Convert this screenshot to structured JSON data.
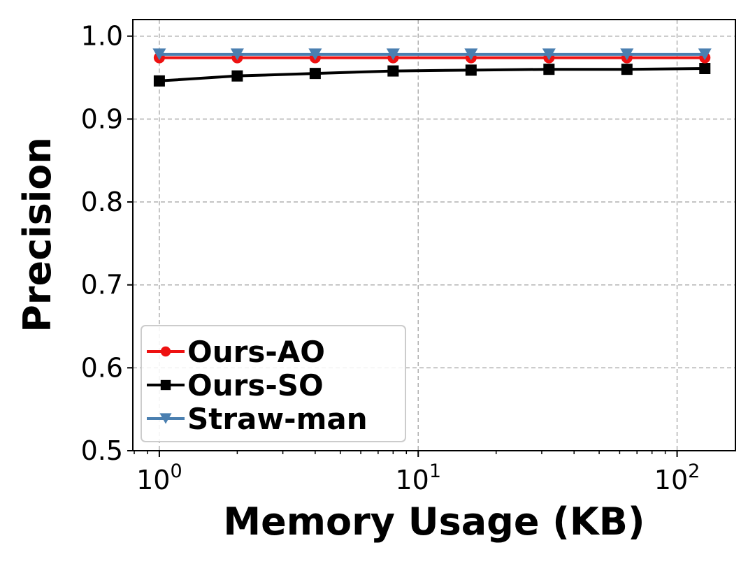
{
  "chart_data": {
    "type": "line",
    "xscale": "log",
    "xlabel": "Memory Usage (KB)",
    "ylabel": "Precision",
    "xlim": [
      0.79,
      168
    ],
    "ylim": [
      0.5,
      1.02
    ],
    "x": [
      1,
      2,
      4,
      8,
      16,
      32,
      64,
      128
    ],
    "x_ticks": [
      {
        "base": "10",
        "exp": "0",
        "value": 1
      },
      {
        "base": "10",
        "exp": "1",
        "value": 10
      },
      {
        "base": "10",
        "exp": "2",
        "value": 100
      }
    ],
    "y_ticks": [
      "0.5",
      "0.6",
      "0.7",
      "0.8",
      "0.9",
      "1.0"
    ],
    "grid": true,
    "legend_position": "bottom-left",
    "series": [
      {
        "name": "Ours-AO",
        "color": "#ee1111",
        "marker": "circle",
        "values": [
          0.974,
          0.974,
          0.974,
          0.974,
          0.974,
          0.974,
          0.974,
          0.974
        ]
      },
      {
        "name": "Ours-SO",
        "color": "#000000",
        "marker": "square",
        "values": [
          0.946,
          0.952,
          0.955,
          0.958,
          0.959,
          0.96,
          0.96,
          0.961
        ]
      },
      {
        "name": "Straw-man",
        "color": "#4a7fb0",
        "marker": "triangle-down",
        "values": [
          0.978,
          0.978,
          0.978,
          0.978,
          0.978,
          0.978,
          0.978,
          0.978
        ]
      }
    ]
  }
}
